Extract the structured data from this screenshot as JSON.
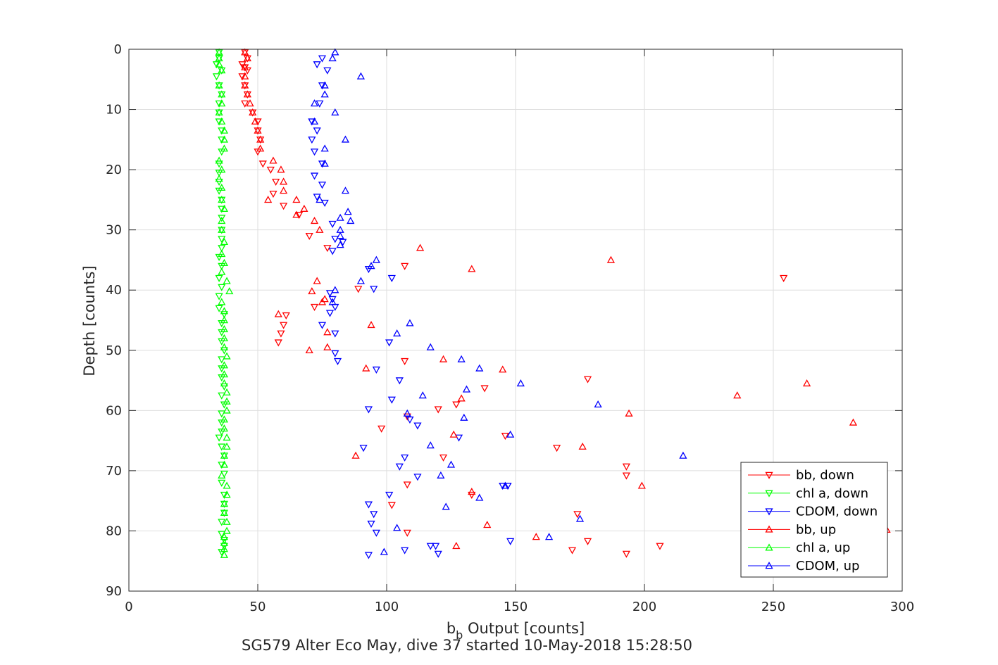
{
  "chart_data": {
    "type": "scatter",
    "xlabel_main": "b",
    "xlabel_sub": "b",
    "xlabel_rest": " Output [counts]",
    "ylabel": "Depth [counts]",
    "caption": "SG579 Alter Eco May, dive 37 started 10-May-2018 15:28:50",
    "xlim": [
      0,
      300
    ],
    "ylim": [
      0,
      90
    ],
    "y_reversed": true,
    "xticks": [
      0,
      50,
      100,
      150,
      200,
      250,
      300
    ],
    "yticks": [
      0,
      10,
      20,
      30,
      40,
      50,
      60,
      70,
      80,
      90
    ],
    "grid": true,
    "legend_placement": "bottom-right",
    "series": [
      {
        "name": "bb, down",
        "color": "#ff0000",
        "marker": "triangle-down",
        "points": [
          [
            45,
            0.5
          ],
          [
            46,
            1.5
          ],
          [
            44,
            2.5
          ],
          [
            45,
            3
          ],
          [
            46,
            3.5
          ],
          [
            44,
            4.5
          ],
          [
            45,
            6
          ],
          [
            46,
            7.5
          ],
          [
            45,
            9
          ],
          [
            48,
            10.5
          ],
          [
            50,
            12
          ],
          [
            50,
            13.5
          ],
          [
            51,
            15
          ],
          [
            50,
            17
          ],
          [
            52,
            19
          ],
          [
            55,
            20
          ],
          [
            57,
            22
          ],
          [
            56,
            24
          ],
          [
            60,
            26
          ],
          [
            66,
            27.5
          ],
          [
            70,
            31
          ],
          [
            77,
            33
          ],
          [
            107,
            36
          ],
          [
            254,
            38
          ],
          [
            89,
            39.8
          ],
          [
            72,
            42.8
          ],
          [
            61,
            44.2
          ],
          [
            60,
            45.8
          ],
          [
            59,
            47.2
          ],
          [
            58,
            48.7
          ],
          [
            107,
            51.8
          ],
          [
            178,
            54.8
          ],
          [
            138,
            56.3
          ],
          [
            127,
            59
          ],
          [
            120,
            59.8
          ],
          [
            108,
            61
          ],
          [
            98,
            63
          ],
          [
            146,
            64.2
          ],
          [
            166,
            66.2
          ],
          [
            122,
            67.8
          ],
          [
            193,
            69.3
          ],
          [
            193,
            70.8
          ],
          [
            108,
            72.3
          ],
          [
            133,
            74
          ],
          [
            102,
            75.7
          ],
          [
            174,
            77.2
          ],
          [
            108,
            80.3
          ],
          [
            178,
            81.7
          ],
          [
            172,
            83.2
          ],
          [
            193,
            83.8
          ],
          [
            206,
            82.5
          ]
        ]
      },
      {
        "name": "chl a, down",
        "color": "#00ff00",
        "marker": "triangle-down",
        "points": [
          [
            35,
            0.5
          ],
          [
            35,
            1.5
          ],
          [
            34,
            2.5
          ],
          [
            36,
            3.5
          ],
          [
            34,
            4.5
          ],
          [
            35,
            6
          ],
          [
            36,
            7.5
          ],
          [
            35,
            9
          ],
          [
            35,
            10.5
          ],
          [
            35,
            12
          ],
          [
            36,
            13.5
          ],
          [
            36,
            15
          ],
          [
            36,
            17
          ],
          [
            35,
            19
          ],
          [
            35,
            20.5
          ],
          [
            35,
            22
          ],
          [
            35,
            23.5
          ],
          [
            36,
            25
          ],
          [
            36,
            26.5
          ],
          [
            36,
            28
          ],
          [
            36,
            30
          ],
          [
            36,
            31.5
          ],
          [
            36,
            33
          ],
          [
            35,
            34.5
          ],
          [
            36,
            36
          ],
          [
            35,
            38
          ],
          [
            36,
            39.5
          ],
          [
            35,
            41
          ],
          [
            35,
            43
          ],
          [
            37,
            44
          ],
          [
            36,
            45.5
          ],
          [
            36,
            47
          ],
          [
            36,
            48.5
          ],
          [
            37,
            50
          ],
          [
            36,
            51.5
          ],
          [
            36,
            53
          ],
          [
            36,
            54.5
          ],
          [
            37,
            56
          ],
          [
            36,
            57.5
          ],
          [
            37,
            59
          ],
          [
            36,
            60.5
          ],
          [
            36,
            62
          ],
          [
            36,
            63.5
          ],
          [
            35,
            64.5
          ],
          [
            36,
            66
          ],
          [
            37,
            67.5
          ],
          [
            36,
            69
          ],
          [
            37,
            70.5
          ],
          [
            36,
            72
          ],
          [
            37,
            74
          ],
          [
            37,
            75.5
          ],
          [
            37,
            77
          ],
          [
            36,
            78.5
          ],
          [
            36,
            80.5
          ],
          [
            37,
            81.5
          ],
          [
            37,
            82.5
          ],
          [
            36,
            83.5
          ]
        ]
      },
      {
        "name": "CDOM, down",
        "color": "#0000ff",
        "marker": "triangle-down",
        "points": [
          [
            75,
            1.5
          ],
          [
            73,
            2.5
          ],
          [
            77,
            3.5
          ],
          [
            75,
            6
          ],
          [
            74,
            9
          ],
          [
            71,
            12
          ],
          [
            73,
            13.5
          ],
          [
            71,
            15
          ],
          [
            72,
            17
          ],
          [
            75,
            19
          ],
          [
            72,
            21
          ],
          [
            75,
            22.5
          ],
          [
            73,
            24.5
          ],
          [
            76,
            25.5
          ],
          [
            79,
            29
          ],
          [
            83,
            32
          ],
          [
            79,
            33.5
          ],
          [
            80,
            31.5
          ],
          [
            93,
            36.5
          ],
          [
            102,
            38
          ],
          [
            95,
            39.8
          ],
          [
            78,
            40.5
          ],
          [
            79,
            41.5
          ],
          [
            80,
            42.8
          ],
          [
            78,
            43.8
          ],
          [
            75,
            45.8
          ],
          [
            80,
            47.2
          ],
          [
            101,
            48.7
          ],
          [
            80,
            50.5
          ],
          [
            81,
            51.8
          ],
          [
            96,
            53.2
          ],
          [
            105,
            55
          ],
          [
            102,
            58.2
          ],
          [
            93,
            59.8
          ],
          [
            109,
            61.5
          ],
          [
            112,
            62.5
          ],
          [
            128,
            64.5
          ],
          [
            91,
            66.2
          ],
          [
            107,
            67.8
          ],
          [
            105,
            69.3
          ],
          [
            112,
            71
          ],
          [
            147,
            72.5
          ],
          [
            145,
            72.5
          ],
          [
            101,
            74
          ],
          [
            93,
            75.6
          ],
          [
            95,
            77.2
          ],
          [
            94,
            78.8
          ],
          [
            96,
            80.3
          ],
          [
            148,
            81.7
          ],
          [
            107,
            83.2
          ],
          [
            117,
            82.5
          ],
          [
            119,
            82.5
          ],
          [
            120,
            83.8
          ],
          [
            93,
            84
          ]
        ]
      },
      {
        "name": "bb, up",
        "color": "#ff0000",
        "marker": "triangle-up",
        "points": [
          [
            45,
            0.5
          ],
          [
            46,
            1.5
          ],
          [
            45,
            3
          ],
          [
            45,
            4.5
          ],
          [
            45,
            6
          ],
          [
            46,
            7.5
          ],
          [
            47,
            9
          ],
          [
            48,
            10.5
          ],
          [
            49,
            12
          ],
          [
            50,
            13.5
          ],
          [
            51,
            15
          ],
          [
            51,
            16.5
          ],
          [
            56,
            18.5
          ],
          [
            59,
            20
          ],
          [
            60,
            22
          ],
          [
            60,
            23.5
          ],
          [
            54,
            25
          ],
          [
            65,
            25
          ],
          [
            68,
            26.5
          ],
          [
            65,
            27.5
          ],
          [
            72,
            28.5
          ],
          [
            74,
            30
          ],
          [
            113,
            33
          ],
          [
            187,
            35
          ],
          [
            133,
            36.5
          ],
          [
            73,
            38.5
          ],
          [
            71,
            40.2
          ],
          [
            75,
            42
          ],
          [
            76,
            41.5
          ],
          [
            58,
            44
          ],
          [
            77,
            47
          ],
          [
            77,
            49.5
          ],
          [
            70,
            50
          ],
          [
            94,
            45.8
          ],
          [
            92,
            53
          ],
          [
            122,
            51.5
          ],
          [
            145,
            53.2
          ],
          [
            263,
            55.5
          ],
          [
            236,
            57.5
          ],
          [
            129,
            58
          ],
          [
            194,
            60.5
          ],
          [
            281,
            62
          ],
          [
            126,
            64
          ],
          [
            176,
            66
          ],
          [
            88,
            67.5
          ],
          [
            199,
            72.5
          ],
          [
            133,
            73.5
          ],
          [
            139,
            79
          ],
          [
            158,
            81
          ],
          [
            127,
            82.5
          ],
          [
            294,
            79.8
          ]
        ]
      },
      {
        "name": "chl a, up",
        "color": "#00ff00",
        "marker": "triangle-up",
        "points": [
          [
            35,
            0.5
          ],
          [
            35,
            1.5
          ],
          [
            35,
            2.5
          ],
          [
            36,
            3.5
          ],
          [
            35,
            6
          ],
          [
            36,
            7.5
          ],
          [
            36,
            9
          ],
          [
            35,
            10.5
          ],
          [
            36,
            12
          ],
          [
            37,
            13.5
          ],
          [
            37,
            15
          ],
          [
            37,
            16.5
          ],
          [
            35,
            18.5
          ],
          [
            36,
            20
          ],
          [
            35,
            21.5
          ],
          [
            36,
            23
          ],
          [
            36,
            25
          ],
          [
            37,
            26.5
          ],
          [
            36,
            28.5
          ],
          [
            36,
            30
          ],
          [
            37,
            32
          ],
          [
            36,
            34
          ],
          [
            37,
            35.5
          ],
          [
            36,
            37
          ],
          [
            38,
            38.5
          ],
          [
            39,
            40.2
          ],
          [
            36,
            42
          ],
          [
            37,
            43.5
          ],
          [
            37,
            45
          ],
          [
            37,
            46.5
          ],
          [
            37,
            48
          ],
          [
            37,
            49.5
          ],
          [
            38,
            51
          ],
          [
            37,
            52.5
          ],
          [
            37,
            54
          ],
          [
            37,
            55.5
          ],
          [
            38,
            57
          ],
          [
            38,
            58.5
          ],
          [
            38,
            60
          ],
          [
            37,
            61.5
          ],
          [
            37,
            63
          ],
          [
            38,
            64.5
          ],
          [
            38,
            66
          ],
          [
            37,
            67.5
          ],
          [
            37,
            69
          ],
          [
            36,
            70.8
          ],
          [
            38,
            72.5
          ],
          [
            38,
            74
          ],
          [
            37,
            75.5
          ],
          [
            37,
            77
          ],
          [
            38,
            78.5
          ],
          [
            38,
            80
          ],
          [
            37,
            81
          ],
          [
            37,
            82
          ],
          [
            37,
            83
          ],
          [
            37,
            84
          ]
        ]
      },
      {
        "name": "CDOM, up",
        "color": "#0000ff",
        "marker": "triangle-up",
        "points": [
          [
            80,
            0.5
          ],
          [
            79,
            1.5
          ],
          [
            90,
            4.5
          ],
          [
            76,
            6
          ],
          [
            76,
            7.5
          ],
          [
            72,
            9
          ],
          [
            80,
            10.5
          ],
          [
            72,
            12
          ],
          [
            84,
            15
          ],
          [
            76,
            16.5
          ],
          [
            76,
            19
          ],
          [
            84,
            23.5
          ],
          [
            74,
            25
          ],
          [
            85,
            27
          ],
          [
            82,
            28
          ],
          [
            86,
            28.5
          ],
          [
            82,
            30
          ],
          [
            82,
            31
          ],
          [
            82,
            32.5
          ],
          [
            96,
            35
          ],
          [
            94,
            36
          ],
          [
            90,
            38.5
          ],
          [
            80,
            40
          ],
          [
            79,
            42
          ],
          [
            109,
            45.5
          ],
          [
            104,
            47.2
          ],
          [
            117,
            49.5
          ],
          [
            129,
            51.5
          ],
          [
            136,
            53
          ],
          [
            152,
            55.5
          ],
          [
            131,
            56.5
          ],
          [
            114,
            57.5
          ],
          [
            182,
            59
          ],
          [
            108,
            60.5
          ],
          [
            130,
            61.2
          ],
          [
            117,
            65.8
          ],
          [
            148,
            64
          ],
          [
            215,
            67.5
          ],
          [
            125,
            69
          ],
          [
            121,
            70.8
          ],
          [
            146,
            72.5
          ],
          [
            136,
            74.5
          ],
          [
            123,
            76
          ],
          [
            175,
            78
          ],
          [
            104,
            79.5
          ],
          [
            163,
            81
          ],
          [
            99,
            83.5
          ]
        ]
      }
    ]
  }
}
